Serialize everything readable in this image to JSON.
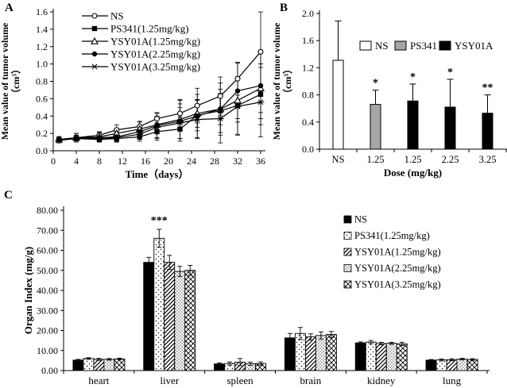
{
  "figure": {
    "background": "#ffffff",
    "ink_color": "#000000",
    "gray_hex": "#a6a6a6"
  },
  "panels": [
    {
      "label": "A"
    },
    {
      "label": "B"
    },
    {
      "label": "C"
    }
  ],
  "chart_data": [
    {
      "panel": "A",
      "type": "line",
      "xlabel": "Time（days）",
      "ylabel_line1": "Mean value of tumor volume",
      "ylabel_line2": "（cm³）",
      "xlim": [
        0,
        36
      ],
      "xtick_step": 4,
      "ylim": [
        0,
        1.6
      ],
      "ytick_step": 0.2,
      "legend_position": "top-left-inside",
      "x": [
        1,
        4,
        8,
        11,
        15,
        18,
        22,
        25,
        29,
        32,
        36
      ],
      "series": [
        {
          "name": "NS",
          "marker": "open-circle",
          "values": [
            0.13,
            0.15,
            0.18,
            0.24,
            0.28,
            0.37,
            0.43,
            0.52,
            0.63,
            0.83,
            1.14
          ],
          "err": [
            0.03,
            0.05,
            0.04,
            0.06,
            0.06,
            0.06,
            0.16,
            0.2,
            0.22,
            0.19,
            0.46
          ]
        },
        {
          "name": "PS341(1.25mg/kg)",
          "marker": "filled-square",
          "values": [
            0.13,
            0.14,
            0.13,
            0.14,
            0.16,
            0.22,
            0.25,
            0.41,
            0.46,
            0.52,
            0.65
          ],
          "err": [
            0.03,
            0.04,
            0.03,
            0.04,
            0.05,
            0.1,
            0.14,
            0.18,
            0.25,
            0.33,
            0.35
          ]
        },
        {
          "name": "YSY01A(1.25mg/kg)",
          "marker": "open-triangle",
          "values": [
            0.13,
            0.15,
            0.16,
            0.2,
            0.25,
            0.3,
            0.36,
            0.43,
            0.48,
            0.58,
            0.72
          ],
          "err": [
            0.03,
            0.05,
            0.05,
            0.06,
            0.08,
            0.1,
            0.22,
            0.16,
            0.18,
            0.25,
            0.28
          ]
        },
        {
          "name": "YSY01A(2.25mg/kg)",
          "marker": "filled-circle",
          "values": [
            0.13,
            0.14,
            0.15,
            0.16,
            0.22,
            0.29,
            0.34,
            0.4,
            0.48,
            0.69,
            0.75
          ],
          "err": [
            0.03,
            0.04,
            0.04,
            0.05,
            0.07,
            0.15,
            0.2,
            0.25,
            0.3,
            0.32,
            0.38
          ]
        },
        {
          "name": "YSY01A(3.25mg/kg)",
          "marker": "x-cross",
          "values": [
            0.12,
            0.14,
            0.14,
            0.15,
            0.19,
            0.27,
            0.32,
            0.36,
            0.37,
            0.51,
            0.56
          ],
          "err": [
            0.03,
            0.04,
            0.04,
            0.05,
            0.06,
            0.12,
            0.18,
            0.22,
            0.28,
            0.33,
            0.4
          ]
        }
      ]
    },
    {
      "panel": "B",
      "type": "bar",
      "xlabel": "Dose (mg/kg)",
      "ylabel_line1": "Mean value of tumor volume",
      "ylabel_line2": "（cm³）",
      "ylim": [
        0,
        2.0
      ],
      "ytick_step": 0.4,
      "categories": [
        "NS",
        "1.25",
        "1.25",
        "2.25",
        "3.25"
      ],
      "values": [
        1.31,
        0.66,
        0.71,
        0.62,
        0.53
      ],
      "errors": [
        0.58,
        0.21,
        0.25,
        0.41,
        0.27
      ],
      "significance": [
        "",
        "*",
        "*",
        "*",
        "**"
      ],
      "bar_fills": [
        "white",
        "gray",
        "black",
        "black",
        "black"
      ],
      "legend": [
        {
          "label": "NS",
          "fill": "white"
        },
        {
          "label": "PS341",
          "fill": "gray"
        },
        {
          "label": "YSY01A",
          "fill": "black"
        }
      ]
    },
    {
      "panel": "C",
      "type": "grouped-bar",
      "ylabel": "Organ Index (mg/g)",
      "ylim": [
        0,
        80
      ],
      "ytick_step": 10,
      "ytick_decimals": 2,
      "legend_position": "right-inside",
      "categories": [
        "heart",
        "liver",
        "spleen",
        "brain",
        "kidney",
        "lung"
      ],
      "series": [
        {
          "name": "NS",
          "pattern": "solid-black",
          "values": [
            5.2,
            54.0,
            3.3,
            16.3,
            13.8,
            5.2
          ],
          "err": [
            0.4,
            2.5,
            0.5,
            2.2,
            0.5,
            0.3
          ]
        },
        {
          "name": "PS341(1.25mg/kg)",
          "pattern": "dots",
          "values": [
            6.0,
            66.0,
            3.5,
            18.5,
            14.2,
            5.3
          ],
          "err": [
            0.4,
            4.5,
            0.8,
            3.0,
            0.8,
            0.5
          ]
        },
        {
          "name": "YSY01A(1.25mg/kg)",
          "pattern": "diagonal-hatch",
          "values": [
            5.6,
            54.0,
            4.2,
            16.8,
            13.5,
            5.4
          ],
          "err": [
            0.5,
            3.5,
            1.8,
            1.5,
            0.6,
            0.5
          ]
        },
        {
          "name": "YSY01A(2.25mg/kg)",
          "pattern": "fine-dots",
          "values": [
            5.6,
            49.5,
            3.4,
            17.5,
            13.6,
            5.7
          ],
          "err": [
            0.4,
            2.5,
            0.8,
            1.8,
            0.5,
            0.4
          ]
        },
        {
          "name": "YSY01A(3.25mg/kg)",
          "pattern": "crosshatch",
          "values": [
            5.8,
            50.0,
            3.5,
            18.0,
            13.3,
            5.5
          ],
          "err": [
            0.4,
            2.5,
            0.8,
            1.5,
            0.8,
            0.4
          ]
        }
      ],
      "significance": {
        "text": "***",
        "category_index": 1,
        "series_index": 1
      }
    }
  ]
}
